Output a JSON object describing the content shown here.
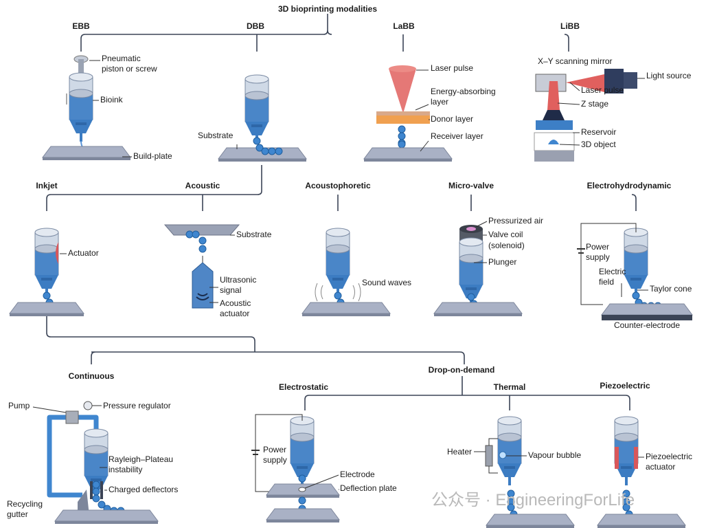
{
  "title": "3D bioprinting modalities",
  "level1": [
    "EBB",
    "DBB",
    "LaBB",
    "LiBB"
  ],
  "level2": [
    "Inkjet",
    "Acoustic",
    "Acoustophoretic",
    "Micro-valve",
    "Electrohydrodynamic"
  ],
  "level3": [
    "Continuous",
    "Drop-on-demand"
  ],
  "level4": [
    "Electrostatic",
    "Thermal",
    "Piezoelectric"
  ],
  "labels": {
    "ebb_piston": [
      "Pneumatic",
      "piston or screw"
    ],
    "ebb_bioink": "Bioink",
    "ebb_plate": "Build-plate",
    "dbb_substrate": "Substrate",
    "labb_laser": "Laser pulse",
    "labb_energy": [
      "Energy-absorbing",
      "layer"
    ],
    "labb_donor": "Donor layer",
    "labb_receiver": "Receiver layer",
    "libb_mirror": "X–Y scanning mirror",
    "libb_light": "Light source",
    "libb_laser": "Laser pulse",
    "libb_z": "Z stage",
    "libb_reservoir": "Reservoir",
    "libb_object": "3D object",
    "inkjet_actuator": "Actuator",
    "acoustic_substrate": "Substrate",
    "acoustic_signal": [
      "Ultrasonic",
      "signal"
    ],
    "acoustic_actuator": [
      "Acoustic",
      "actuator"
    ],
    "acousto_waves": "Sound waves",
    "valve_air": "Pressurized air",
    "valve_coil": [
      "Valve coil",
      "(solenoid)"
    ],
    "valve_plunger": "Plunger",
    "ehd_power": [
      "Power",
      "supply"
    ],
    "ehd_field": [
      "Electric",
      "field"
    ],
    "ehd_cone": "Taylor cone",
    "ehd_counter": "Counter-electrode",
    "cont_pump": "Pump",
    "cont_regulator": "Pressure regulator",
    "cont_rayleigh": [
      "Rayleigh–Plateau",
      "instability"
    ],
    "cont_deflectors": "Charged deflectors",
    "cont_gutter": [
      "Recycling",
      "gutter"
    ],
    "es_power": [
      "Power",
      "supply"
    ],
    "es_electrode": "Electrode",
    "es_deflection": "Deflection plate",
    "th_heater": "Heater",
    "th_bubble": "Vapour bubble",
    "pz_actuator": [
      "Piezoelectric",
      "actuator"
    ]
  },
  "watermark": "公众号 · EngineeringForLife",
  "colors": {
    "bioink": "#4a86c8",
    "barrel": "#cfd9e6",
    "plate": "#a9b1c5",
    "laser": "#e0605e",
    "donor": "#f0a050",
    "actuator": "#d9575a",
    "connector": "#3b4456"
  }
}
